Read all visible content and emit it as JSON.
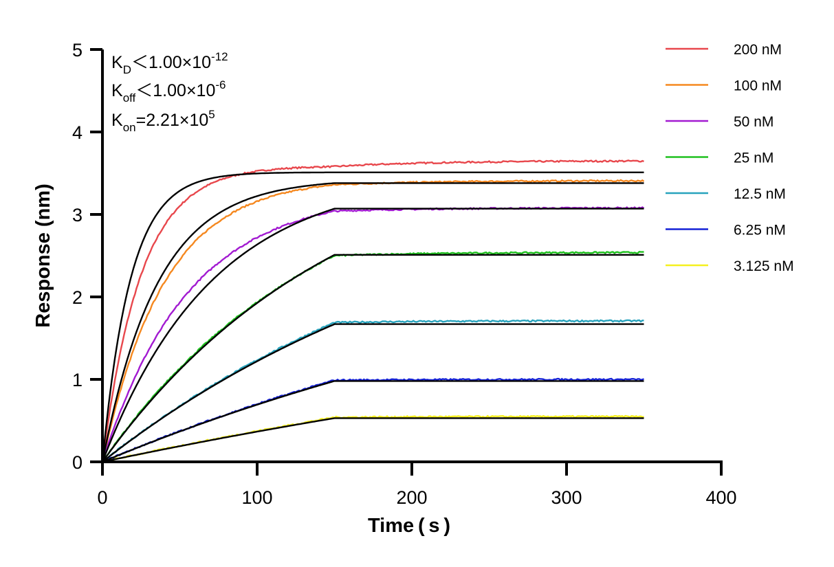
{
  "chart_data": {
    "type": "line",
    "xlabel": "Time ( s )",
    "ylabel": "Response (nm)",
    "xlim": [
      0,
      400
    ],
    "ylim": [
      0,
      5
    ],
    "x_ticks": [
      "0",
      "100",
      "200",
      "300",
      "400"
    ],
    "y_ticks": [
      "0",
      "1",
      "2",
      "3",
      "4",
      "5"
    ],
    "association_end_s": 150,
    "end_s": 350,
    "grid": false,
    "legend_position": "right",
    "annotations": {
      "kd_prefix": "K",
      "kd_sub": "D",
      "kd_text": "＜1.00×10",
      "kd_exp": "-12",
      "koff_prefix": "K",
      "koff_sub": "off",
      "koff_text": "＜1.00×10",
      "koff_exp": "-6",
      "kon_prefix": "K",
      "kon_sub": "on",
      "kon_text": "=2.21×10",
      "kon_exp": "5"
    },
    "fit_color": "#000000",
    "series": [
      {
        "name": "200 nM",
        "color": "#e8474c",
        "plateau_measured": 3.58,
        "end_measured": 3.65,
        "k_measured": 0.04,
        "plateau_fit": 3.51,
        "k_fit": 0.055
      },
      {
        "name": "100 nM",
        "color": "#f5881f",
        "plateau_measured": 3.36,
        "end_measured": 3.41,
        "k_measured": 0.025,
        "plateau_fit": 3.38,
        "k_fit": 0.028
      },
      {
        "name": "50 nM",
        "color": "#a21ad1",
        "plateau_measured": 3.04,
        "end_measured": 3.08,
        "k_measured": 0.018,
        "plateau_fit": 3.07,
        "k_fit": 0.014
      },
      {
        "name": "25 nM",
        "color": "#1fc11f",
        "plateau_measured": 2.5,
        "end_measured": 2.54,
        "k_measured": 0.007,
        "plateau_fit": 2.51,
        "k_fit": 0.0065
      },
      {
        "name": "12.5 nM",
        "color": "#27a3bd",
        "plateau_measured": 1.69,
        "end_measured": 1.71,
        "k_measured": 0.004,
        "plateau_fit": 1.67,
        "k_fit": 0.004
      },
      {
        "name": "6.25 nM",
        "color": "#1421d6",
        "plateau_measured": 0.99,
        "end_measured": 1.0,
        "k_measured": 0.0025,
        "plateau_fit": 0.98,
        "k_fit": 0.0025
      },
      {
        "name": "3.125 nM",
        "color": "#f5f01e",
        "plateau_measured": 0.54,
        "end_measured": 0.55,
        "k_measured": 0.0015,
        "plateau_fit": 0.53,
        "k_fit": 0.0015
      }
    ]
  }
}
